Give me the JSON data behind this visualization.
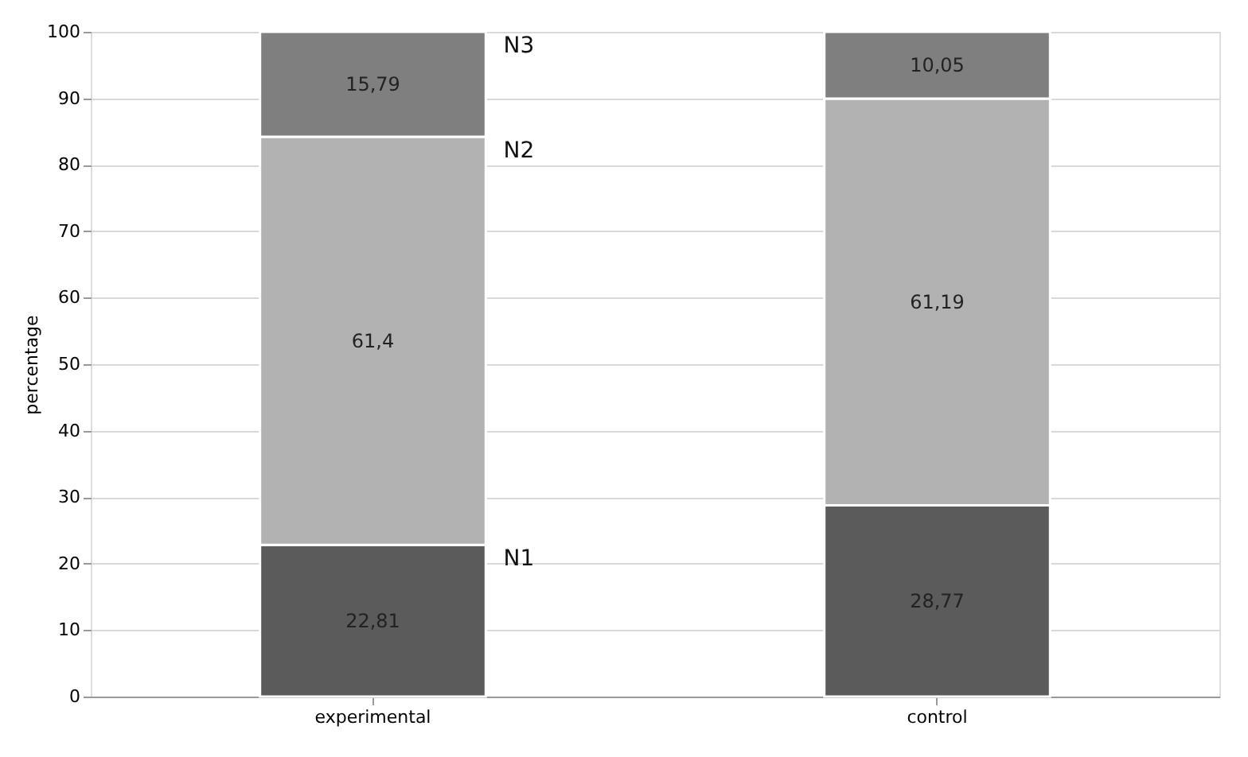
{
  "chart_data": {
    "type": "bar",
    "stacked": true,
    "ylabel": "percentage",
    "categories": [
      "experimental",
      "control"
    ],
    "series": [
      {
        "name": "N1",
        "color": "#5b5b5b",
        "values": [
          22.81,
          28.77
        ],
        "value_labels": [
          "22,81",
          "28,77"
        ]
      },
      {
        "name": "N2",
        "color": "#b2b2b2",
        "values": [
          61.4,
          61.19
        ],
        "value_labels": [
          "61,4",
          "61,19"
        ]
      },
      {
        "name": "N3",
        "color": "#7f7f7f",
        "values": [
          15.79,
          10.05
        ],
        "value_labels": [
          "15,79",
          "10,05"
        ]
      }
    ],
    "ylim": [
      0,
      100
    ],
    "yticks": [
      0,
      10,
      20,
      30,
      40,
      50,
      60,
      70,
      80,
      90,
      100
    ],
    "grid": "y",
    "legend": false
  }
}
